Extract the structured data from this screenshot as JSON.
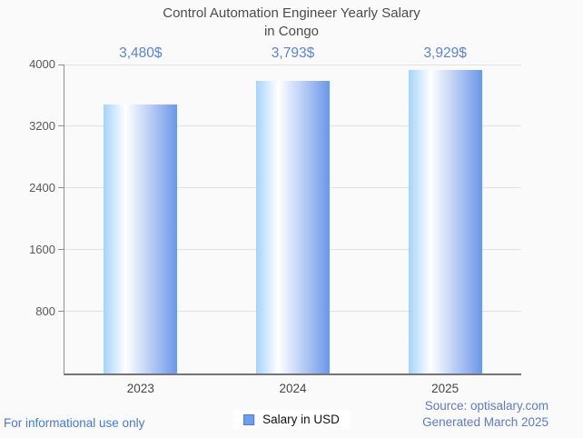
{
  "title": {
    "line1": "Control Automation Engineer Yearly Salary",
    "line2": "in Congo"
  },
  "chart_data": {
    "type": "bar",
    "title": "Control Automation Engineer Yearly Salary in Congo",
    "categories": [
      "2023",
      "2024",
      "2025"
    ],
    "values": [
      3480,
      3793,
      3929
    ],
    "value_labels": [
      "3,480$",
      "3,793$",
      "3,929$"
    ],
    "series_name": "Salary in USD",
    "xlabel": "",
    "ylabel": "",
    "ylim": [
      0,
      4000
    ],
    "yticks": [
      800,
      1600,
      2400,
      3200,
      4000
    ],
    "grid": true,
    "legend_position": "bottom"
  },
  "legend": {
    "label": "Salary in USD"
  },
  "footer": {
    "left_note": "For informational use only",
    "source_line1": "Source: optisalary.com",
    "source_line2": "Generated March 2025"
  },
  "colors": {
    "background": "#fafafa",
    "bar_gradient_left": "#a7d3fa",
    "bar_gradient_mid": "#ffffff",
    "bar_gradient_right": "#6c97e9",
    "value_label_blue": "#5b83d9",
    "legend_swatch_blue": "#6d9ee9",
    "footer_left_blue": "#4478e2",
    "footer_right_blue": "#5c7bc9",
    "gridline_gray": "#e2e2e2",
    "axis_gray": "#8e8e8e",
    "title_gray": "#4c4c4c"
  }
}
